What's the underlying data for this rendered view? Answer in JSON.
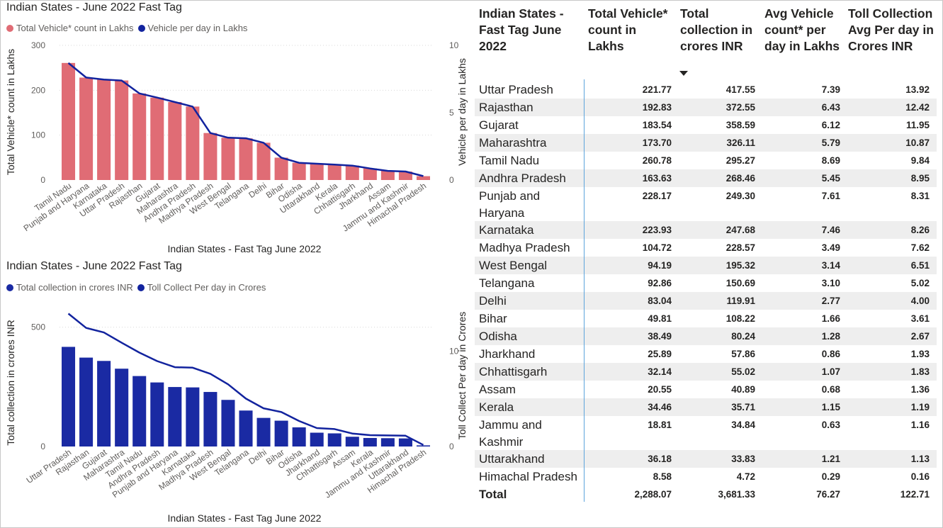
{
  "chart_data": [
    {
      "type": "bar",
      "title": "Indian States - June 2022 Fast Tag",
      "xlabel": "Indian States - Fast Tag June 2022",
      "ylabel": "Total Vehicle* count in Lakhs",
      "y2label": "Vehicle per day in Lakhs",
      "ylim": [
        0,
        300
      ],
      "y2lim": [
        0,
        10
      ],
      "yticks": [
        0,
        100,
        200,
        300
      ],
      "y2ticks": [
        0,
        5,
        10
      ],
      "categories": [
        "Tamil Nadu",
        "Punjab and Haryana",
        "Karnataka",
        "Uttar Pradesh",
        "Rajasthan",
        "Gujarat",
        "Maharashtra",
        "Andhra Pradesh",
        "Madhya Pradesh",
        "West Bengal",
        "Telangana",
        "Delhi",
        "Bihar",
        "Odisha",
        "Uttarakhand",
        "Kerala",
        "Chhattisgarh",
        "Jharkhand",
        "Assam",
        "Jammu and Kashmir",
        "Himachal Pradesh"
      ],
      "series": [
        {
          "name": "Total Vehicle* count in Lakhs",
          "kind": "bar",
          "axis": "left",
          "color": "#e06c75",
          "values": [
            260.78,
            228.17,
            223.93,
            221.77,
            192.83,
            183.54,
            173.7,
            163.63,
            104.72,
            94.19,
            92.86,
            83.04,
            49.81,
            38.49,
            36.18,
            34.46,
            32.14,
            25.89,
            20.55,
            18.81,
            8.58
          ]
        },
        {
          "name": "Vehicle per day in Lakhs",
          "kind": "line",
          "axis": "right",
          "color": "#12239e",
          "values": [
            8.69,
            7.61,
            7.46,
            7.39,
            6.43,
            6.12,
            5.79,
            5.45,
            3.49,
            3.14,
            3.1,
            2.77,
            1.66,
            1.28,
            1.21,
            1.15,
            1.07,
            0.86,
            0.68,
            0.63,
            0.29
          ]
        }
      ],
      "legend": "top-left",
      "grid": true
    },
    {
      "type": "bar",
      "title": "Indian States - June 2022 Fast Tag",
      "xlabel": "Indian States - Fast Tag June 2022",
      "ylabel": "Total collection in crores INR",
      "y2label": "Toll Collect Per day in Crores",
      "ylim": [
        0,
        600
      ],
      "y2lim": [
        0,
        15
      ],
      "yticks": [
        0,
        500
      ],
      "y2ticks": [
        0,
        10
      ],
      "categories": [
        "Uttar Pradesh",
        "Rajasthan",
        "Gujarat",
        "Maharashtra",
        "Tamil Nadu",
        "Andhra Pradesh",
        "Punjab and Haryana",
        "Karnataka",
        "Madhya Pradesh",
        "West Bengal",
        "Telangana",
        "Delhi",
        "Bihar",
        "Odisha",
        "Jharkhand",
        "Chhattisgarh",
        "Assam",
        "Kerala",
        "Jammu and Kashmir",
        "Uttarakhand",
        "Himachal Pradesh"
      ],
      "series": [
        {
          "name": "Total collection in crores INR",
          "kind": "bar",
          "axis": "left",
          "color": "#1a2aa3",
          "values": [
            417.55,
            372.55,
            358.59,
            326.11,
            295.27,
            268.46,
            249.3,
            247.68,
            228.57,
            195.32,
            150.69,
            119.91,
            108.22,
            80.24,
            57.86,
            55.02,
            40.89,
            35.71,
            34.84,
            33.83,
            4.72
          ]
        },
        {
          "name": "Toll Collect Per day in Crores",
          "kind": "line",
          "axis": "right",
          "color": "#12239e",
          "values": [
            13.92,
            12.42,
            11.95,
            10.87,
            9.84,
            8.95,
            8.31,
            8.26,
            7.62,
            6.51,
            5.02,
            4.0,
            3.61,
            2.67,
            1.93,
            1.83,
            1.36,
            1.19,
            1.16,
            1.13,
            0.16
          ]
        }
      ],
      "legend": "top-left",
      "grid": true
    },
    {
      "type": "table",
      "headers": [
        "Indian States - Fast Tag June 2022",
        "Total Vehicle* count in Lakhs",
        "Total collection in crores INR",
        "Avg Vehicle count* per day in Lakhs",
        "Toll Collection Avg Per day in Crores INR"
      ],
      "sorted_column": 2,
      "sort_direction": "descending",
      "rows": [
        [
          "Uttar Pradesh",
          "221.77",
          "417.55",
          "7.39",
          "13.92"
        ],
        [
          "Rajasthan",
          "192.83",
          "372.55",
          "6.43",
          "12.42"
        ],
        [
          "Gujarat",
          "183.54",
          "358.59",
          "6.12",
          "11.95"
        ],
        [
          "Maharashtra",
          "173.70",
          "326.11",
          "5.79",
          "10.87"
        ],
        [
          "Tamil Nadu",
          "260.78",
          "295.27",
          "8.69",
          "9.84"
        ],
        [
          "Andhra Pradesh",
          "163.63",
          "268.46",
          "5.45",
          "8.95"
        ],
        [
          "Punjab and Haryana",
          "228.17",
          "249.30",
          "7.61",
          "8.31"
        ],
        [
          "Karnataka",
          "223.93",
          "247.68",
          "7.46",
          "8.26"
        ],
        [
          "Madhya Pradesh",
          "104.72",
          "228.57",
          "3.49",
          "7.62"
        ],
        [
          "West Bengal",
          "94.19",
          "195.32",
          "3.14",
          "6.51"
        ],
        [
          "Telangana",
          "92.86",
          "150.69",
          "3.10",
          "5.02"
        ],
        [
          "Delhi",
          "83.04",
          "119.91",
          "2.77",
          "4.00"
        ],
        [
          "Bihar",
          "49.81",
          "108.22",
          "1.66",
          "3.61"
        ],
        [
          "Odisha",
          "38.49",
          "80.24",
          "1.28",
          "2.67"
        ],
        [
          "Jharkhand",
          "25.89",
          "57.86",
          "0.86",
          "1.93"
        ],
        [
          "Chhattisgarh",
          "32.14",
          "55.02",
          "1.07",
          "1.83"
        ],
        [
          "Assam",
          "20.55",
          "40.89",
          "0.68",
          "1.36"
        ],
        [
          "Kerala",
          "34.46",
          "35.71",
          "1.15",
          "1.19"
        ],
        [
          "Jammu and Kashmir",
          "18.81",
          "34.84",
          "0.63",
          "1.16"
        ],
        [
          "Uttarakhand",
          "36.18",
          "33.83",
          "1.21",
          "1.13"
        ],
        [
          "Himachal Pradesh",
          "8.58",
          "4.72",
          "0.29",
          "0.16"
        ]
      ],
      "total": [
        "Total",
        "2,288.07",
        "3,681.33",
        "76.27",
        "122.71"
      ]
    }
  ],
  "colors": {
    "row_band": "#eeeeee",
    "divider": "#5ba3dc",
    "gridline": "#d9d9d9"
  },
  "icons": {
    "sort": "sort-descending-icon"
  }
}
